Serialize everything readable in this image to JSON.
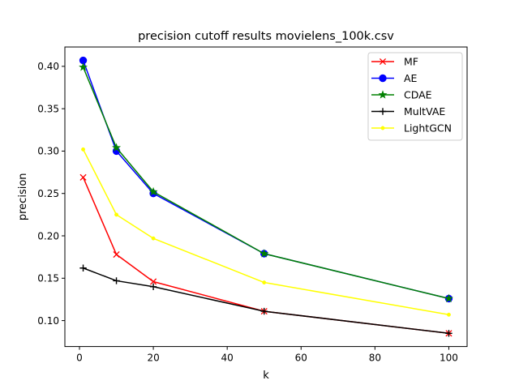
{
  "chart_data": {
    "type": "line",
    "title": "precision cutoff results movielens_100k.csv",
    "xlabel": "k",
    "ylabel": "precision",
    "xlim": [
      -3.95,
      104.95
    ],
    "ylim": [
      0.0694,
      0.4228
    ],
    "xticks": [
      0,
      20,
      40,
      60,
      80,
      100
    ],
    "xtick_labels": [
      "0",
      "20",
      "40",
      "60",
      "80",
      "100"
    ],
    "yticks": [
      0.1,
      0.15,
      0.2,
      0.25,
      0.3,
      0.35,
      0.4
    ],
    "ytick_labels": [
      "0.10",
      "0.15",
      "0.20",
      "0.25",
      "0.30",
      "0.35",
      "0.40"
    ],
    "grid": false,
    "legend": "top-right",
    "x": [
      1,
      10,
      20,
      50,
      100
    ],
    "series": [
      {
        "name": "MF",
        "color": "#ff0000",
        "marker": "x",
        "values": [
          0.269,
          0.178,
          0.146,
          0.111,
          0.085
        ]
      },
      {
        "name": "AE",
        "color": "#0000ff",
        "marker": "circle",
        "values": [
          0.407,
          0.3,
          0.25,
          0.179,
          0.126
        ]
      },
      {
        "name": "CDAE",
        "color": "#008000",
        "marker": "star",
        "values": [
          0.399,
          0.304,
          0.252,
          0.179,
          0.126
        ]
      },
      {
        "name": "MultVAE",
        "color": "#000000",
        "marker": "plus",
        "values": [
          0.162,
          0.147,
          0.14,
          0.111,
          0.085
        ]
      },
      {
        "name": "LightGCN",
        "color": "#ffff00",
        "marker": "dot",
        "values": [
          0.302,
          0.225,
          0.197,
          0.145,
          0.107
        ]
      }
    ]
  }
}
